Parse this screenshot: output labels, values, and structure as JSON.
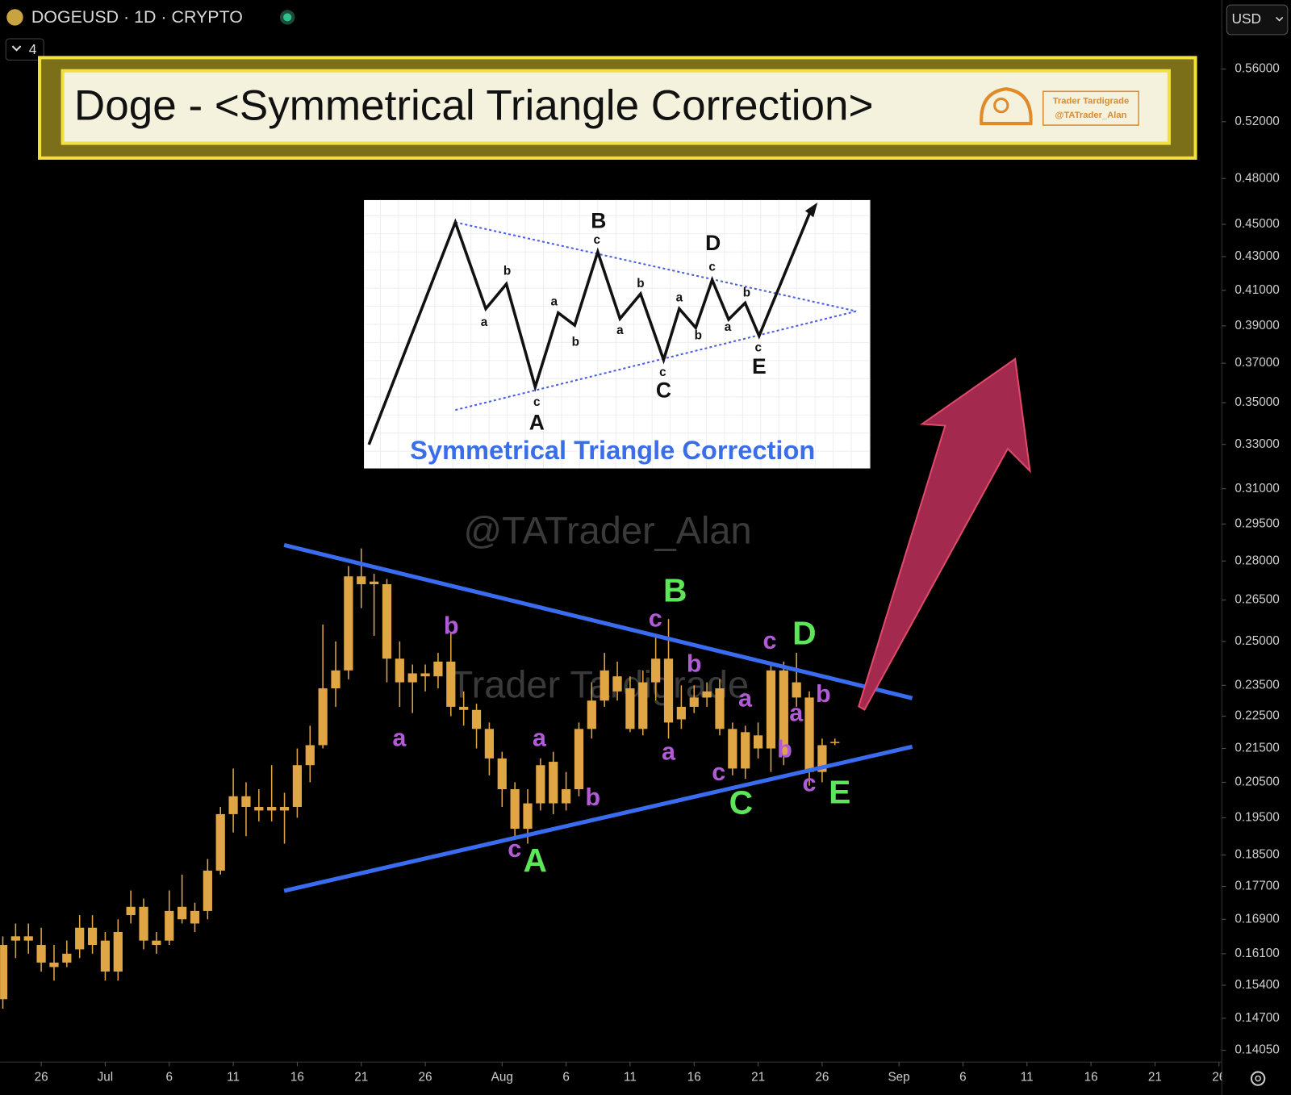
{
  "header": {
    "symbol": "DOGEUSD · 1D · CRYPTO",
    "indicator_count": "4",
    "currency": "USD",
    "banner_title": "Doge - <Symmetrical Triangle Correction>",
    "brand_name": "Trader Tardigrade",
    "brand_handle": "@TATrader_Alan",
    "watermark_handle": "@TATrader_Alan",
    "watermark_name": "Trader Tardigrade"
  },
  "inset": {
    "title": "Symmetrical Triangle Correction",
    "labels": [
      "B",
      "c",
      "D",
      "c",
      "b",
      "a",
      "a",
      "b",
      "b",
      "a",
      "a",
      "b",
      "a",
      "b",
      "c",
      "A",
      "c",
      "C",
      "c",
      "E"
    ]
  },
  "chart_data": {
    "type": "candlestick",
    "log_scale": true,
    "color": "#e0a545",
    "x": [
      "06-23",
      "06-24",
      "06-25",
      "06-26",
      "06-27",
      "06-28",
      "06-29",
      "06-30",
      "07-01",
      "07-02",
      "07-03",
      "07-04",
      "07-05",
      "07-06",
      "07-07",
      "07-08",
      "07-09",
      "07-10",
      "07-11",
      "07-12",
      "07-13",
      "07-14",
      "07-15",
      "07-16",
      "07-17",
      "07-18",
      "07-19",
      "07-20",
      "07-21",
      "07-22",
      "07-23",
      "07-24",
      "07-25",
      "07-26",
      "07-27",
      "07-28",
      "07-29",
      "07-30",
      "07-31",
      "08-01",
      "08-02",
      "08-03",
      "08-04",
      "08-05",
      "08-06",
      "08-07",
      "08-08",
      "08-09",
      "08-10",
      "08-11",
      "08-12",
      "08-13",
      "08-14",
      "08-15",
      "08-16",
      "08-17",
      "08-18",
      "08-19",
      "08-20",
      "08-21",
      "08-22",
      "08-23",
      "08-24",
      "08-25",
      "08-26",
      "08-27"
    ],
    "open": [
      0.151,
      0.164,
      0.165,
      0.163,
      0.159,
      0.159,
      0.162,
      0.167,
      0.164,
      0.157,
      0.17,
      0.172,
      0.163,
      0.164,
      0.172,
      0.168,
      0.171,
      0.181,
      0.196,
      0.201,
      0.198,
      0.197,
      0.197,
      0.198,
      0.21,
      0.216,
      0.234,
      0.24,
      0.274,
      0.272,
      0.271,
      0.244,
      0.236,
      0.239,
      0.238,
      0.243,
      0.228,
      0.227,
      0.221,
      0.212,
      0.203,
      0.192,
      0.199,
      0.211,
      0.199,
      0.203,
      0.221,
      0.23,
      0.238,
      0.234,
      0.221,
      0.236,
      0.244,
      0.224,
      0.228,
      0.231,
      0.234,
      0.221,
      0.209,
      0.219,
      0.215,
      0.24,
      0.236,
      0.231,
      0.208,
      0.217
    ],
    "high": [
      0.165,
      0.168,
      0.168,
      0.167,
      0.163,
      0.164,
      0.17,
      0.17,
      0.166,
      0.169,
      0.176,
      0.174,
      0.166,
      0.176,
      0.18,
      0.173,
      0.184,
      0.198,
      0.209,
      0.205,
      0.203,
      0.21,
      0.202,
      0.215,
      0.222,
      0.256,
      0.25,
      0.278,
      0.285,
      0.275,
      0.273,
      0.25,
      0.242,
      0.242,
      0.246,
      0.253,
      0.233,
      0.229,
      0.223,
      0.214,
      0.205,
      0.203,
      0.212,
      0.214,
      0.208,
      0.223,
      0.236,
      0.246,
      0.243,
      0.238,
      0.24,
      0.252,
      0.258,
      0.235,
      0.235,
      0.236,
      0.237,
      0.223,
      0.222,
      0.223,
      0.243,
      0.243,
      0.246,
      0.233,
      0.218,
      0.218
    ],
    "low": [
      0.149,
      0.16,
      0.161,
      0.157,
      0.155,
      0.158,
      0.16,
      0.161,
      0.155,
      0.155,
      0.168,
      0.162,
      0.161,
      0.163,
      0.168,
      0.166,
      0.169,
      0.18,
      0.191,
      0.19,
      0.194,
      0.194,
      0.188,
      0.195,
      0.205,
      0.215,
      0.228,
      0.237,
      0.262,
      0.252,
      0.236,
      0.228,
      0.226,
      0.233,
      0.234,
      0.225,
      0.222,
      0.215,
      0.207,
      0.198,
      0.189,
      0.188,
      0.197,
      0.196,
      0.197,
      0.201,
      0.218,
      0.228,
      0.23,
      0.22,
      0.219,
      0.23,
      0.218,
      0.221,
      0.226,
      0.228,
      0.219,
      0.207,
      0.206,
      0.212,
      0.208,
      0.21,
      0.228,
      0.204,
      0.205,
      0.216
    ],
    "close": [
      0.163,
      0.165,
      0.164,
      0.159,
      0.158,
      0.161,
      0.167,
      0.163,
      0.157,
      0.166,
      0.172,
      0.164,
      0.164,
      0.171,
      0.169,
      0.171,
      0.181,
      0.196,
      0.201,
      0.198,
      0.197,
      0.198,
      0.198,
      0.21,
      0.216,
      0.234,
      0.24,
      0.274,
      0.271,
      0.271,
      0.244,
      0.236,
      0.239,
      0.238,
      0.243,
      0.228,
      0.227,
      0.221,
      0.212,
      0.203,
      0.192,
      0.199,
      0.21,
      0.199,
      0.203,
      0.221,
      0.23,
      0.24,
      0.233,
      0.221,
      0.236,
      0.244,
      0.223,
      0.228,
      0.231,
      0.233,
      0.221,
      0.209,
      0.22,
      0.215,
      0.24,
      0.213,
      0.231,
      0.208,
      0.216,
      0.217
    ],
    "ylim": [
      0.1382,
      0.6173
    ],
    "yticks": [
      {
        "value": 0.56,
        "label": "0.56000"
      },
      {
        "value": 0.52,
        "label": "0.52000"
      },
      {
        "value": 0.48,
        "label": "0.48000"
      },
      {
        "value": 0.45,
        "label": "0.45000"
      },
      {
        "value": 0.43,
        "label": "0.43000"
      },
      {
        "value": 0.41,
        "label": "0.41000"
      },
      {
        "value": 0.39,
        "label": "0.39000"
      },
      {
        "value": 0.37,
        "label": "0.37000"
      },
      {
        "value": 0.35,
        "label": "0.35000"
      },
      {
        "value": 0.33,
        "label": "0.33000"
      },
      {
        "value": 0.31,
        "label": "0.31000"
      },
      {
        "value": 0.295,
        "label": "0.29500"
      },
      {
        "value": 0.28,
        "label": "0.28000"
      },
      {
        "value": 0.265,
        "label": "0.26500"
      },
      {
        "value": 0.25,
        "label": "0.25000"
      },
      {
        "value": 0.235,
        "label": "0.23500"
      },
      {
        "value": 0.225,
        "label": "0.22500"
      },
      {
        "value": 0.215,
        "label": "0.21500"
      },
      {
        "value": 0.205,
        "label": "0.20500"
      },
      {
        "value": 0.195,
        "label": "0.19500"
      },
      {
        "value": 0.185,
        "label": "0.18500"
      },
      {
        "value": 0.177,
        "label": "0.17700"
      },
      {
        "value": 0.169,
        "label": "0.16900"
      },
      {
        "value": 0.161,
        "label": "0.16100"
      },
      {
        "value": 0.154,
        "label": "0.15400"
      },
      {
        "value": 0.147,
        "label": "0.14700"
      },
      {
        "value": 0.1405,
        "label": "0.14050"
      }
    ],
    "xticks": [
      {
        "value": "06-26",
        "label": "26"
      },
      {
        "value": "07-01",
        "label": "Jul"
      },
      {
        "value": "07-06",
        "label": "6"
      },
      {
        "value": "07-11",
        "label": "11"
      },
      {
        "value": "07-16",
        "label": "16"
      },
      {
        "value": "07-21",
        "label": "21"
      },
      {
        "value": "07-26",
        "label": "26"
      },
      {
        "value": "08-01",
        "label": "Aug"
      },
      {
        "value": "08-06",
        "label": "6"
      },
      {
        "value": "08-11",
        "label": "11"
      },
      {
        "value": "08-16",
        "label": "16"
      },
      {
        "value": "08-21",
        "label": "21"
      },
      {
        "value": "08-26",
        "label": "26"
      },
      {
        "value": "09-01",
        "label": "Sep"
      },
      {
        "value": "09-06",
        "label": "6"
      },
      {
        "value": "09-11",
        "label": "11"
      },
      {
        "value": "09-16",
        "label": "16"
      },
      {
        "value": "09-21",
        "label": "21"
      },
      {
        "value": "09-26",
        "label": "26"
      }
    ],
    "major_labels": [
      "B",
      "D",
      "A",
      "C",
      "E"
    ],
    "minor_labels": [
      "b",
      "a",
      "a",
      "b",
      "c",
      "c",
      "b",
      "a",
      "a",
      "c",
      "c",
      "a",
      "b",
      "b",
      "c"
    ]
  }
}
